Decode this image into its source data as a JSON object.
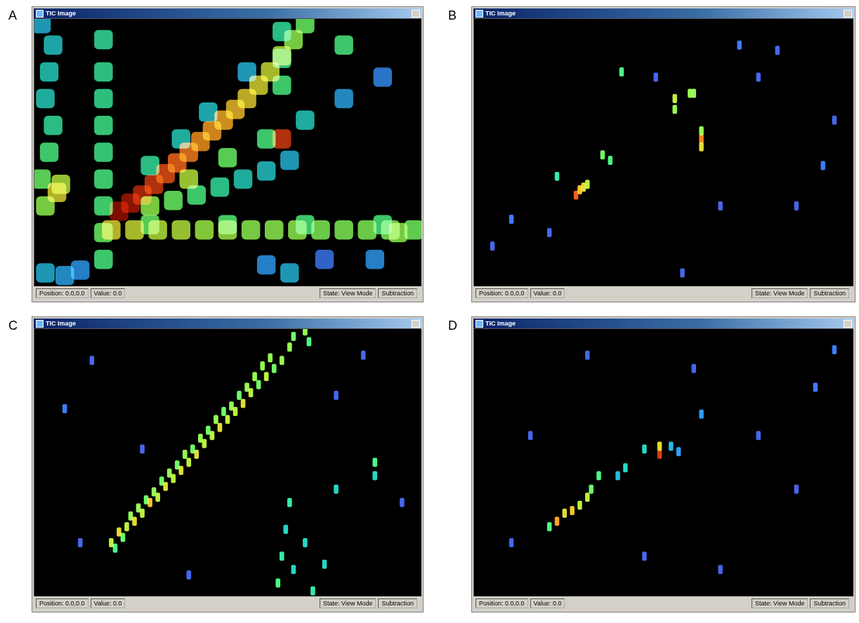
{
  "chart_data": [
    {
      "type": "heatmap",
      "panel": "A",
      "title": "TIC Image",
      "xlim": [
        0,
        100
      ],
      "ylim": [
        0,
        100
      ],
      "tick_labels": false,
      "color_range": [
        0,
        100
      ],
      "status_bar": [
        "Position: 0.0,0.0",
        "Value: 0.0",
        "State: View Mode",
        "Subtraction"
      ],
      "spots": [
        [
          2,
          40,
          45
        ],
        [
          4,
          50,
          40
        ],
        [
          5,
          60,
          35
        ],
        [
          3,
          70,
          30
        ],
        [
          4,
          80,
          30
        ],
        [
          5,
          90,
          28
        ],
        [
          6,
          35,
          60
        ],
        [
          7,
          38,
          55
        ],
        [
          3,
          30,
          50
        ],
        [
          2,
          98,
          25
        ],
        [
          18,
          10,
          40
        ],
        [
          18,
          20,
          45
        ],
        [
          18,
          30,
          40
        ],
        [
          18,
          40,
          40
        ],
        [
          18,
          50,
          38
        ],
        [
          18,
          60,
          38
        ],
        [
          18,
          70,
          36
        ],
        [
          18,
          80,
          36
        ],
        [
          18,
          92,
          35
        ],
        [
          20,
          21,
          60
        ],
        [
          26,
          21,
          58
        ],
        [
          32,
          21,
          55
        ],
        [
          38,
          21,
          55
        ],
        [
          44,
          21,
          52
        ],
        [
          50,
          21,
          52
        ],
        [
          56,
          21,
          50
        ],
        [
          62,
          21,
          50
        ],
        [
          68,
          21,
          50
        ],
        [
          74,
          21,
          48
        ],
        [
          80,
          21,
          48
        ],
        [
          86,
          21,
          48
        ],
        [
          92,
          21,
          48
        ],
        [
          98,
          21,
          46
        ],
        [
          30,
          23,
          45
        ],
        [
          50,
          23,
          42
        ],
        [
          70,
          23,
          40
        ],
        [
          90,
          23,
          40
        ],
        [
          22,
          28,
          95
        ],
        [
          25,
          31,
          92
        ],
        [
          28,
          34,
          88
        ],
        [
          31,
          38,
          85
        ],
        [
          34,
          42,
          82
        ],
        [
          37,
          46,
          78
        ],
        [
          40,
          50,
          75
        ],
        [
          43,
          54,
          72
        ],
        [
          46,
          58,
          70
        ],
        [
          49,
          62,
          68
        ],
        [
          52,
          66,
          65
        ],
        [
          55,
          70,
          62
        ],
        [
          58,
          75,
          60
        ],
        [
          61,
          80,
          58
        ],
        [
          64,
          86,
          55
        ],
        [
          67,
          92,
          50
        ],
        [
          70,
          98,
          45
        ],
        [
          30,
          30,
          50
        ],
        [
          36,
          32,
          45
        ],
        [
          42,
          34,
          40
        ],
        [
          48,
          37,
          35
        ],
        [
          54,
          40,
          30
        ],
        [
          60,
          43,
          28
        ],
        [
          66,
          47,
          25
        ],
        [
          40,
          40,
          55
        ],
        [
          50,
          48,
          45
        ],
        [
          60,
          55,
          40
        ],
        [
          70,
          62,
          30
        ],
        [
          80,
          70,
          22
        ],
        [
          90,
          78,
          18
        ],
        [
          30,
          45,
          35
        ],
        [
          38,
          55,
          30
        ],
        [
          45,
          65,
          28
        ],
        [
          55,
          80,
          25
        ],
        [
          64,
          55,
          85
        ],
        [
          64,
          75,
          40
        ],
        [
          64,
          85,
          38
        ],
        [
          64,
          95,
          35
        ],
        [
          80,
          90,
          40
        ],
        [
          94,
          20,
          50
        ],
        [
          3,
          5,
          25
        ],
        [
          8,
          4,
          22
        ],
        [
          12,
          6,
          20
        ],
        [
          60,
          8,
          20
        ],
        [
          66,
          5,
          25
        ],
        [
          75,
          10,
          15
        ],
        [
          88,
          10,
          20
        ]
      ]
    },
    {
      "type": "heatmap",
      "panel": "B",
      "title": "TIC Image",
      "xlim": [
        0,
        100
      ],
      "ylim": [
        0,
        100
      ],
      "tick_labels": false,
      "color_range": [
        0,
        100
      ],
      "status_bar": [
        "Position: 0.0,0.0",
        "Value: 0.0",
        "State: View Mode",
        "Subtraction"
      ],
      "spots": [
        [
          27,
          34,
          80
        ],
        [
          28,
          36,
          65
        ],
        [
          29,
          37,
          60
        ],
        [
          30,
          38,
          55
        ],
        [
          34,
          49,
          45
        ],
        [
          36,
          47,
          40
        ],
        [
          22,
          41,
          35
        ],
        [
          53,
          70,
          55
        ],
        [
          53,
          66,
          50
        ],
        [
          57,
          72,
          50
        ],
        [
          58,
          72,
          50
        ],
        [
          60,
          55,
          75
        ],
        [
          60,
          52,
          60
        ],
        [
          60,
          58,
          50
        ],
        [
          39,
          80,
          40
        ],
        [
          10,
          25,
          15
        ],
        [
          20,
          20,
          12
        ],
        [
          70,
          90,
          15
        ],
        [
          80,
          88,
          12
        ],
        [
          92,
          45,
          15
        ],
        [
          95,
          62,
          12
        ],
        [
          5,
          15,
          12
        ],
        [
          55,
          5,
          12
        ],
        [
          75,
          78,
          12
        ],
        [
          85,
          30,
          12
        ],
        [
          48,
          78,
          12
        ],
        [
          65,
          30,
          12
        ]
      ]
    },
    {
      "type": "heatmap",
      "panel": "C",
      "title": "TIC Image",
      "xlim": [
        0,
        100
      ],
      "ylim": [
        0,
        100
      ],
      "tick_labels": false,
      "color_range": [
        0,
        100
      ],
      "status_bar": [
        "Position: 0.0,0.0",
        "Value: 0.0",
        "State: View Mode",
        "Subtraction"
      ],
      "spots": [
        [
          20,
          20,
          55
        ],
        [
          21,
          18,
          40
        ],
        [
          22,
          24,
          60
        ],
        [
          23,
          22,
          45
        ],
        [
          24,
          26,
          55
        ],
        [
          25,
          30,
          50
        ],
        [
          26,
          28,
          60
        ],
        [
          27,
          33,
          50
        ],
        [
          28,
          31,
          55
        ],
        [
          29,
          36,
          45
        ],
        [
          30,
          35,
          65
        ],
        [
          31,
          39,
          50
        ],
        [
          32,
          37,
          55
        ],
        [
          33,
          43,
          45
        ],
        [
          34,
          41,
          60
        ],
        [
          35,
          46,
          50
        ],
        [
          36,
          44,
          55
        ],
        [
          37,
          49,
          45
        ],
        [
          38,
          47,
          60
        ],
        [
          39,
          53,
          50
        ],
        [
          40,
          50,
          55
        ],
        [
          41,
          55,
          45
        ],
        [
          42,
          53,
          60
        ],
        [
          43,
          59,
          50
        ],
        [
          44,
          57,
          55
        ],
        [
          45,
          62,
          45
        ],
        [
          46,
          60,
          55
        ],
        [
          47,
          66,
          50
        ],
        [
          48,
          63,
          60
        ],
        [
          49,
          69,
          45
        ],
        [
          50,
          66,
          55
        ],
        [
          51,
          71,
          50
        ],
        [
          52,
          69,
          55
        ],
        [
          53,
          75,
          45
        ],
        [
          54,
          72,
          60
        ],
        [
          55,
          78,
          50
        ],
        [
          56,
          76,
          55
        ],
        [
          57,
          82,
          50
        ],
        [
          58,
          79,
          45
        ],
        [
          59,
          86,
          50
        ],
        [
          60,
          82,
          55
        ],
        [
          61,
          89,
          50
        ],
        [
          62,
          85,
          45
        ],
        [
          64,
          88,
          50
        ],
        [
          66,
          93,
          50
        ],
        [
          67,
          97,
          45
        ],
        [
          70,
          99,
          50
        ],
        [
          71,
          95,
          40
        ],
        [
          63,
          5,
          40
        ],
        [
          64,
          15,
          35
        ],
        [
          65,
          25,
          30
        ],
        [
          66,
          35,
          35
        ],
        [
          67,
          10,
          30
        ],
        [
          70,
          20,
          30
        ],
        [
          72,
          2,
          35
        ],
        [
          75,
          12,
          30
        ],
        [
          78,
          40,
          30
        ],
        [
          88,
          50,
          40
        ],
        [
          88,
          45,
          30
        ],
        [
          8,
          70,
          15
        ],
        [
          15,
          88,
          12
        ],
        [
          28,
          55,
          12
        ],
        [
          12,
          20,
          12
        ],
        [
          85,
          90,
          12
        ],
        [
          95,
          35,
          12
        ],
        [
          40,
          8,
          12
        ],
        [
          78,
          75,
          12
        ]
      ]
    },
    {
      "type": "heatmap",
      "panel": "D",
      "title": "TIC Image",
      "xlim": [
        0,
        100
      ],
      "ylim": [
        0,
        100
      ],
      "tick_labels": false,
      "color_range": [
        0,
        100
      ],
      "status_bar": [
        "Position: 0.0,0.0",
        "Value: 0.0",
        "State: View Mode",
        "Subtraction"
      ],
      "spots": [
        [
          22,
          28,
          70
        ],
        [
          24,
          31,
          60
        ],
        [
          26,
          32,
          65
        ],
        [
          28,
          34,
          55
        ],
        [
          30,
          37,
          55
        ],
        [
          31,
          40,
          45
        ],
        [
          33,
          45,
          40
        ],
        [
          20,
          26,
          40
        ],
        [
          49,
          53,
          85
        ],
        [
          49,
          56,
          60
        ],
        [
          40,
          48,
          30
        ],
        [
          45,
          55,
          30
        ],
        [
          52,
          56,
          25
        ],
        [
          54,
          54,
          20
        ],
        [
          38,
          45,
          25
        ],
        [
          60,
          68,
          20
        ],
        [
          10,
          20,
          12
        ],
        [
          30,
          90,
          12
        ],
        [
          58,
          85,
          12
        ],
        [
          75,
          60,
          12
        ],
        [
          90,
          78,
          15
        ],
        [
          95,
          92,
          15
        ],
        [
          65,
          10,
          12
        ],
        [
          45,
          15,
          12
        ],
        [
          85,
          40,
          12
        ],
        [
          15,
          60,
          12
        ]
      ]
    }
  ]
}
